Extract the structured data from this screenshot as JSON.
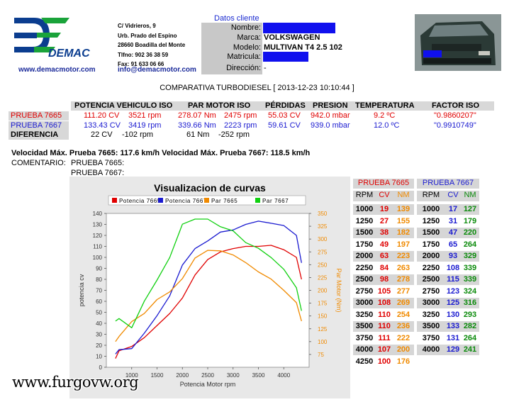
{
  "header": {
    "brand": "DEMAC",
    "web": "www.demacmotor.com",
    "address": [
      "C/ Vidrieros, 9",
      "Urb. Prado del Espino",
      "28660 Boadilla del Monte",
      "Tlfno: 902 36 38 59",
      "Fax: 91 633 06 66"
    ],
    "email": "info@demacmotor.com"
  },
  "client": {
    "title": "Datos cliente",
    "labels": {
      "nombre": "Nombre:",
      "marca": "Marca:",
      "modelo": "Modelo:",
      "matricula": "Matricula:",
      "direccion": "Dirección:"
    },
    "marca": "VOLKSWAGEN",
    "modelo": "MULTIVAN T4 2.5 102",
    "direccion": "-"
  },
  "report_title": "COMPARATIVA TURBODIESEL [ 2013-12-23 10:10:44 ]",
  "summary": {
    "headers": [
      "POTENCIA VEHICULO ISO",
      "PAR MOTOR ISO",
      "PÉRDIDAS",
      "PRESION",
      "TEMPERATURA",
      "FACTOR ISO"
    ],
    "rows": [
      {
        "name": "PRUEBA 7665",
        "cv": "111.20 CV",
        "cv_rpm": "3521 rpm",
        "nm": "278.07 Nm",
        "nm_rpm": "2475 rpm",
        "perd": "55.03 CV",
        "pres": "942.0 mbar",
        "temp": "9.2 ºC",
        "factor": "\"0.9860207\"",
        "color": "#e00000"
      },
      {
        "name": "PRUEBA 7667",
        "cv": "133.43 CV",
        "cv_rpm": "3419 rpm",
        "nm": "339.66 Nm",
        "nm_rpm": "2223 rpm",
        "perd": "59.61 CV",
        "pres": "939.0 mbar",
        "temp": "12.0 ºC",
        "factor": "\"0.9910749\"",
        "color": "#1a1ad0"
      },
      {
        "name": "DIFERENCIA",
        "cv": "22 CV",
        "cv_rpm": "-102 rpm",
        "nm": "61 Nm",
        "nm_rpm": "-252 rpm",
        "perd": "",
        "pres": "",
        "temp": "",
        "factor": "",
        "color": "#000000"
      }
    ]
  },
  "velocidad": "Velocidad Máx. Prueba 7665: 117.6 km/h Velocidad Máx. Prueba 7667: 118.5 km/h",
  "comentario": {
    "label": "COMENTARIO:",
    "p1": "PRUEBA 7665:",
    "p2": "PRUEBA 7667:"
  },
  "chart_data": {
    "type": "line",
    "title": "Visualizacion de curvas",
    "xlabel": "Potencia Motor rpm",
    "ylabel": "potencia cv",
    "y2label": "Par Motor (Nm)",
    "xlim": [
      500,
      4500
    ],
    "ylim": [
      0,
      140
    ],
    "y2lim": [
      50,
      350
    ],
    "xticks": [
      1000,
      1500,
      2000,
      2500,
      3000,
      3500,
      4000
    ],
    "yticks": [
      0,
      10,
      20,
      30,
      40,
      50,
      60,
      70,
      80,
      90,
      100,
      110,
      120,
      130,
      140
    ],
    "y2ticks": [
      75,
      100,
      125,
      150,
      175,
      200,
      225,
      250,
      275,
      300,
      325,
      350
    ],
    "legend": [
      "Potencia 7665",
      "Potencia 7667",
      "Par 7665",
      "Par 7667"
    ],
    "series": [
      {
        "name": "Potencia 7665",
        "axis": "left",
        "color": "#e00000",
        "x": [
          680,
          750,
          1000,
          1250,
          1500,
          1750,
          2000,
          2250,
          2500,
          2750,
          3000,
          3250,
          3500,
          3750,
          4000,
          4250,
          4350
        ],
        "y": [
          8,
          15,
          19,
          27,
          38,
          49,
          63,
          84,
          98,
          105,
          108,
          110,
          110,
          111,
          107,
          100,
          80
        ]
      },
      {
        "name": "Potencia 7667",
        "axis": "left",
        "color": "#1a1ad0",
        "x": [
          680,
          750,
          1000,
          1250,
          1500,
          1750,
          2000,
          2250,
          2500,
          2750,
          3000,
          3250,
          3500,
          3750,
          4000,
          4250,
          4350
        ],
        "y": [
          12,
          16,
          17,
          31,
          47,
          65,
          93,
          108,
          115,
          123,
          125,
          130,
          133,
          131,
          129,
          120,
          95
        ]
      },
      {
        "name": "Par 7665",
        "axis": "right",
        "color": "#f08a00",
        "x": [
          680,
          750,
          1000,
          1250,
          1500,
          1750,
          2000,
          2250,
          2500,
          2750,
          3000,
          3250,
          3500,
          3750,
          4000,
          4250,
          4350
        ],
        "y": [
          100,
          110,
          139,
          155,
          182,
          197,
          223,
          263,
          278,
          277,
          269,
          254,
          236,
          222,
          200,
          176,
          140
        ]
      },
      {
        "name": "Par 7667",
        "axis": "right",
        "color": "#10d010",
        "x": [
          680,
          750,
          1000,
          1250,
          1500,
          1750,
          2000,
          2250,
          2500,
          2750,
          3000,
          3250,
          3500,
          3750,
          4000,
          4250,
          4350
        ],
        "y": [
          140,
          145,
          127,
          179,
          220,
          264,
          329,
          339,
          339,
          324,
          316,
          293,
          282,
          264,
          241,
          205,
          160
        ]
      }
    ]
  },
  "rpm_table": {
    "p1_title": "PRUEBA 7665",
    "p2_title": "PRUEBA 7667",
    "cols": [
      "RPM",
      "CV",
      "NM"
    ],
    "p1": [
      [
        "1000",
        "19",
        "139"
      ],
      [
        "1250",
        "27",
        "155"
      ],
      [
        "1500",
        "38",
        "182"
      ],
      [
        "1750",
        "49",
        "197"
      ],
      [
        "2000",
        "63",
        "223"
      ],
      [
        "2250",
        "84",
        "263"
      ],
      [
        "2500",
        "98",
        "278"
      ],
      [
        "2750",
        "105",
        "277"
      ],
      [
        "3000",
        "108",
        "269"
      ],
      [
        "3250",
        "110",
        "254"
      ],
      [
        "3500",
        "110",
        "236"
      ],
      [
        "3750",
        "111",
        "222"
      ],
      [
        "4000",
        "107",
        "200"
      ],
      [
        "4250",
        "100",
        "176"
      ]
    ],
    "p2": [
      [
        "1000",
        "17",
        "127"
      ],
      [
        "1250",
        "31",
        "179"
      ],
      [
        "1500",
        "47",
        "220"
      ],
      [
        "1750",
        "65",
        "264"
      ],
      [
        "2000",
        "93",
        "329"
      ],
      [
        "2250",
        "108",
        "339"
      ],
      [
        "2500",
        "115",
        "339"
      ],
      [
        "2750",
        "123",
        "324"
      ],
      [
        "3000",
        "125",
        "316"
      ],
      [
        "3250",
        "130",
        "293"
      ],
      [
        "3500",
        "133",
        "282"
      ],
      [
        "3750",
        "131",
        "264"
      ],
      [
        "4000",
        "129",
        "241"
      ]
    ]
  },
  "watermark": "www.furgovw.org"
}
